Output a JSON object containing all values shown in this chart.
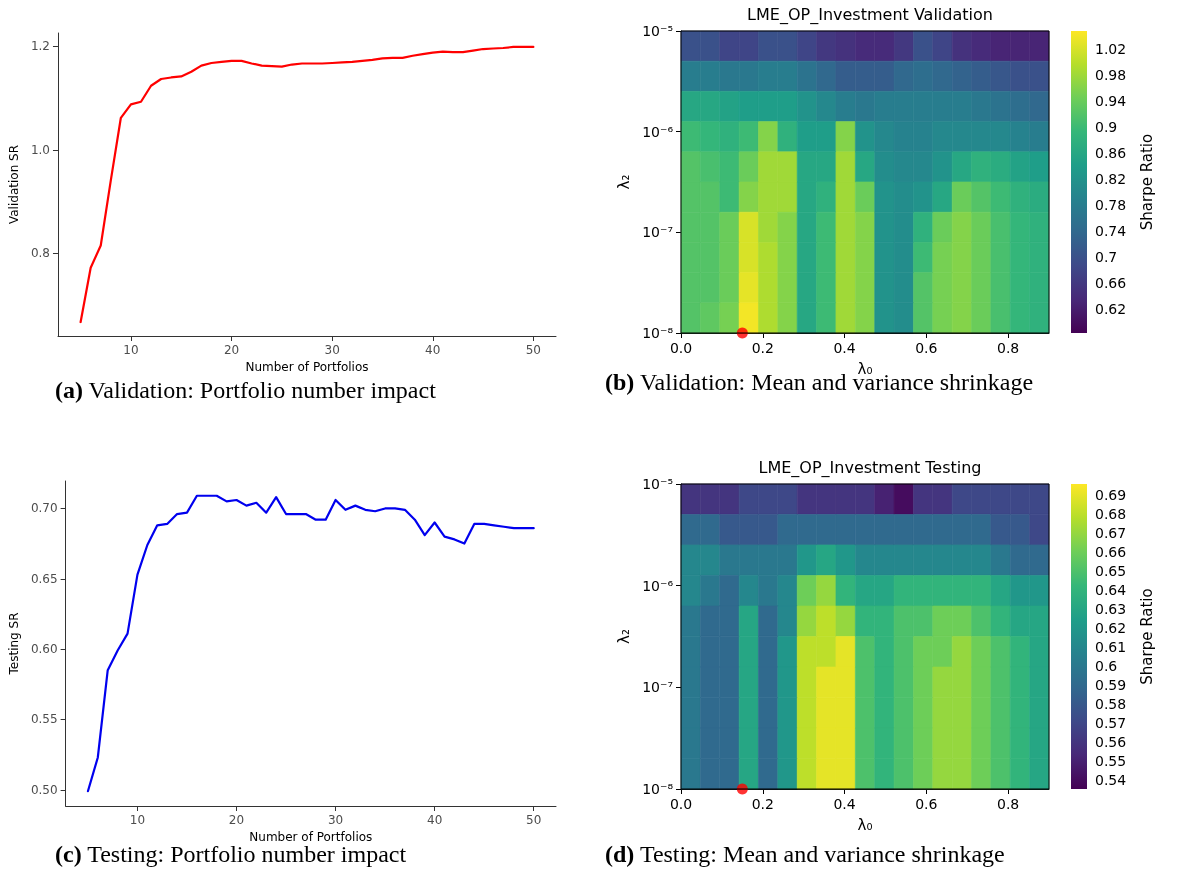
{
  "chart_data": [
    {
      "type": "line",
      "x": [
        5,
        6,
        7,
        8,
        9,
        10,
        11,
        12,
        13,
        14,
        15,
        16,
        17,
        18,
        19,
        20,
        21,
        22,
        23,
        24,
        25,
        26,
        27,
        28,
        29,
        30,
        31,
        32,
        33,
        34,
        35,
        36,
        37,
        38,
        39,
        40,
        41,
        42,
        43,
        44,
        45,
        46,
        47,
        48,
        49,
        50
      ],
      "series": [
        {
          "color": "#ff0000",
          "values": [
            0.667,
            0.772,
            0.815,
            0.941,
            1.062,
            1.088,
            1.093,
            1.124,
            1.137,
            1.14,
            1.142,
            1.151,
            1.163,
            1.168,
            1.17,
            1.172,
            1.172,
            1.167,
            1.163,
            1.162,
            1.161,
            1.165,
            1.167,
            1.167,
            1.167,
            1.168,
            1.169,
            1.17,
            1.172,
            1.174,
            1.177,
            1.178,
            1.178,
            1.182,
            1.185,
            1.188,
            1.19,
            1.189,
            1.189,
            1.192,
            1.195,
            1.196,
            1.197,
            1.199,
            1.199,
            1.199
          ]
        }
      ],
      "xlabel": "Number of Portfolios",
      "ylabel": "Validation SR",
      "xlim": [
        2.75,
        52.25
      ],
      "ylim": [
        0.64,
        1.226
      ],
      "xticks": [
        10,
        20,
        30,
        40,
        50
      ],
      "yticks": [
        0.8,
        {
          "value": 1,
          "label": "1.0"
        },
        1.2
      ],
      "grid": false,
      "marker": "none",
      "line_style": "solid",
      "annotations": [
        "(a) Validation: Portfolio number impact"
      ]
    },
    {
      "type": "heatmap",
      "title": "LME_OP_Investment Validation",
      "xlabel": "λ₀",
      "ylabel": "λ₂",
      "clabel": "Sharpe Ratio",
      "x": [
        0.0237,
        0.0711,
        0.1184,
        0.1658,
        0.2132,
        0.2605,
        0.3079,
        0.3553,
        0.4026,
        0.45,
        0.4974,
        0.5447,
        0.5921,
        0.6395,
        0.6868,
        0.7342,
        0.7816,
        0.8289,
        0.8763
      ],
      "y": [
        7.08e-06,
        3.55e-06,
        1.78e-06,
        8.91e-07,
        4.47e-07,
        2.24e-07,
        1.12e-07,
        5.62e-08,
        2.82e-08,
        1.41e-08
      ],
      "cells": [
        [
          0.7,
          0.7,
          0.68,
          0.68,
          0.7,
          0.7,
          0.68,
          0.66,
          0.65,
          0.64,
          0.64,
          0.66,
          0.7,
          0.68,
          0.65,
          0.64,
          0.63,
          0.63,
          0.63
        ],
        [
          0.78,
          0.78,
          0.77,
          0.77,
          0.78,
          0.78,
          0.76,
          0.74,
          0.72,
          0.72,
          0.72,
          0.74,
          0.75,
          0.74,
          0.73,
          0.72,
          0.71,
          0.7,
          0.7
        ],
        [
          0.86,
          0.86,
          0.85,
          0.84,
          0.84,
          0.84,
          0.82,
          0.8,
          0.78,
          0.77,
          0.78,
          0.78,
          0.78,
          0.78,
          0.78,
          0.77,
          0.76,
          0.75,
          0.74
        ],
        [
          0.9,
          0.89,
          0.88,
          0.9,
          0.96,
          0.88,
          0.84,
          0.84,
          0.96,
          0.82,
          0.8,
          0.79,
          0.79,
          0.8,
          0.8,
          0.8,
          0.8,
          0.79,
          0.78
        ],
        [
          0.92,
          0.91,
          0.9,
          0.94,
          0.98,
          0.98,
          0.86,
          0.86,
          0.98,
          0.86,
          0.81,
          0.8,
          0.8,
          0.82,
          0.86,
          0.88,
          0.87,
          0.85,
          0.84
        ],
        [
          0.92,
          0.92,
          0.9,
          0.96,
          0.98,
          0.98,
          0.86,
          0.88,
          0.98,
          0.94,
          0.82,
          0.81,
          0.82,
          0.86,
          0.94,
          0.92,
          0.9,
          0.88,
          0.87
        ],
        [
          0.92,
          0.92,
          0.94,
          1.02,
          0.98,
          0.96,
          0.86,
          0.9,
          0.98,
          0.96,
          0.82,
          0.81,
          0.88,
          0.94,
          0.96,
          0.94,
          0.91,
          0.89,
          0.88
        ],
        [
          0.92,
          0.92,
          0.94,
          1.02,
          0.99,
          0.96,
          0.86,
          0.9,
          0.98,
          0.96,
          0.82,
          0.81,
          0.9,
          0.95,
          0.96,
          0.94,
          0.91,
          0.89,
          0.88
        ],
        [
          0.92,
          0.92,
          0.94,
          1.03,
          0.99,
          0.96,
          0.86,
          0.9,
          0.98,
          0.96,
          0.82,
          0.81,
          0.92,
          0.95,
          0.96,
          0.94,
          0.91,
          0.89,
          0.88
        ],
        [
          0.92,
          0.93,
          0.95,
          1.04,
          0.99,
          0.96,
          0.86,
          0.9,
          0.98,
          0.96,
          0.82,
          0.81,
          0.92,
          0.95,
          0.96,
          0.94,
          0.91,
          0.89,
          0.88
        ]
      ],
      "series": [
        {
          "type": "scatter",
          "color": "#ff0000",
          "x": [
            0.15
          ],
          "values": [
            1e-08
          ]
        }
      ],
      "xlim": [
        0,
        0.9
      ],
      "ylim": [
        1e-08,
        1e-05
      ],
      "log": "y",
      "xticks": [
        {
          "value": 0,
          "label": "0.0"
        },
        0.2,
        0.4,
        0.6,
        0.8
      ],
      "yticks": [
        {
          "value": 1e-08,
          "label": "10⁻⁸"
        },
        {
          "value": 1e-07,
          "label": "10⁻⁷"
        },
        {
          "value": 1e-06,
          "label": "10⁻⁶"
        },
        {
          "value": 1e-05,
          "label": "10⁻⁵"
        }
      ],
      "clim": [
        0.583,
        1.047
      ],
      "cticks": [
        0.62,
        0.66,
        0.7,
        0.74,
        0.78,
        0.82,
        0.86,
        0.9,
        0.94,
        0.98,
        1.02
      ],
      "annotations": [
        "(b) Validation: Mean and variance shrinkage"
      ]
    },
    {
      "type": "line",
      "x": [
        5,
        6,
        7,
        8,
        9,
        10,
        11,
        12,
        13,
        14,
        15,
        16,
        17,
        18,
        19,
        20,
        21,
        22,
        23,
        24,
        25,
        26,
        27,
        28,
        29,
        30,
        31,
        32,
        33,
        34,
        35,
        36,
        37,
        38,
        39,
        40,
        41,
        42,
        43,
        44,
        45,
        46,
        47,
        48,
        49,
        50
      ],
      "series": [
        {
          "color": "#0000ee",
          "values": [
            0.499,
            0.523,
            0.585,
            0.599,
            0.611,
            0.653,
            0.674,
            0.688,
            0.689,
            0.696,
            0.697,
            0.709,
            0.709,
            0.709,
            0.705,
            0.706,
            0.702,
            0.704,
            0.697,
            0.708,
            0.696,
            0.696,
            0.696,
            0.692,
            0.692,
            0.706,
            0.699,
            0.702,
            0.699,
            0.698,
            0.7,
            0.7,
            0.699,
            0.692,
            0.681,
            0.69,
            0.68,
            0.678,
            0.675,
            0.689,
            0.689,
            0.688,
            0.687,
            0.686,
            0.686,
            0.686
          ]
        }
      ],
      "xlabel": "Number of Portfolios",
      "ylabel": "Testing SR",
      "xlim": [
        2.75,
        52.25
      ],
      "ylim": [
        0.4885,
        0.7195
      ],
      "xticks": [
        10,
        20,
        30,
        40,
        50
      ],
      "yticks": [
        {
          "value": 0.5,
          "label": "0.50"
        },
        0.55,
        {
          "value": 0.6,
          "label": "0.60"
        },
        0.65,
        {
          "value": 0.7,
          "label": "0.70"
        }
      ],
      "grid": false,
      "marker": "none",
      "line_style": "solid",
      "annotations": [
        "(c) Testing: Portfolio number impact"
      ]
    },
    {
      "type": "heatmap",
      "title": "LME_OP_Investment Testing",
      "xlabel": "λ₀",
      "ylabel": "λ₂",
      "clabel": "Sharpe Ratio",
      "x": [
        0.0237,
        0.0711,
        0.1184,
        0.1658,
        0.2132,
        0.2605,
        0.3079,
        0.3553,
        0.4026,
        0.45,
        0.4974,
        0.5447,
        0.5921,
        0.6395,
        0.6868,
        0.7342,
        0.7816,
        0.8289,
        0.8763
      ],
      "y": [
        7.08e-06,
        3.55e-06,
        1.78e-06,
        8.91e-07,
        4.47e-07,
        2.24e-07,
        1.12e-07,
        5.62e-08,
        2.82e-08,
        1.41e-08
      ],
      "cells": [
        [
          0.56,
          0.56,
          0.56,
          0.57,
          0.57,
          0.57,
          0.56,
          0.56,
          0.56,
          0.56,
          0.55,
          0.54,
          0.56,
          0.56,
          0.57,
          0.57,
          0.57,
          0.57,
          0.57
        ],
        [
          0.59,
          0.59,
          0.58,
          0.58,
          0.58,
          0.59,
          0.59,
          0.59,
          0.59,
          0.59,
          0.59,
          0.59,
          0.59,
          0.59,
          0.59,
          0.59,
          0.58,
          0.58,
          0.57
        ],
        [
          0.61,
          0.61,
          0.6,
          0.6,
          0.6,
          0.6,
          0.62,
          0.63,
          0.62,
          0.61,
          0.61,
          0.61,
          0.61,
          0.61,
          0.61,
          0.61,
          0.6,
          0.59,
          0.59
        ],
        [
          0.61,
          0.6,
          0.59,
          0.61,
          0.6,
          0.61,
          0.66,
          0.67,
          0.64,
          0.63,
          0.63,
          0.64,
          0.64,
          0.64,
          0.64,
          0.64,
          0.63,
          0.62,
          0.62
        ],
        [
          0.6,
          0.59,
          0.59,
          0.63,
          0.59,
          0.61,
          0.67,
          0.68,
          0.67,
          0.64,
          0.64,
          0.65,
          0.65,
          0.66,
          0.66,
          0.65,
          0.64,
          0.63,
          0.63
        ],
        [
          0.6,
          0.59,
          0.59,
          0.63,
          0.59,
          0.62,
          0.68,
          0.68,
          0.69,
          0.65,
          0.64,
          0.65,
          0.66,
          0.66,
          0.67,
          0.66,
          0.65,
          0.64,
          0.63
        ],
        [
          0.6,
          0.59,
          0.59,
          0.63,
          0.59,
          0.62,
          0.68,
          0.69,
          0.69,
          0.65,
          0.64,
          0.65,
          0.66,
          0.67,
          0.67,
          0.66,
          0.65,
          0.64,
          0.63
        ],
        [
          0.6,
          0.59,
          0.59,
          0.63,
          0.59,
          0.62,
          0.68,
          0.69,
          0.69,
          0.65,
          0.64,
          0.65,
          0.66,
          0.67,
          0.67,
          0.66,
          0.65,
          0.64,
          0.63
        ],
        [
          0.6,
          0.59,
          0.59,
          0.63,
          0.59,
          0.62,
          0.68,
          0.69,
          0.69,
          0.65,
          0.64,
          0.65,
          0.66,
          0.67,
          0.67,
          0.66,
          0.65,
          0.64,
          0.63
        ],
        [
          0.6,
          0.59,
          0.59,
          0.63,
          0.59,
          0.62,
          0.68,
          0.69,
          0.69,
          0.65,
          0.64,
          0.65,
          0.66,
          0.67,
          0.67,
          0.66,
          0.65,
          0.64,
          0.63
        ]
      ],
      "series": [
        {
          "type": "scatter",
          "color": "#ff0000",
          "x": [
            0.15
          ],
          "values": [
            1e-08
          ]
        }
      ],
      "xlim": [
        0,
        0.9
      ],
      "ylim": [
        1e-08,
        1e-05
      ],
      "log": "y",
      "xticks": [
        {
          "value": 0,
          "label": "0.0"
        },
        0.2,
        0.4,
        0.6,
        0.8
      ],
      "yticks": [
        {
          "value": 1e-08,
          "label": "10⁻⁸"
        },
        {
          "value": 1e-07,
          "label": "10⁻⁷"
        },
        {
          "value": 1e-06,
          "label": "10⁻⁶"
        },
        {
          "value": 1e-05,
          "label": "10⁻⁵"
        }
      ],
      "clim": [
        0.535,
        0.696
      ],
      "cticks": [
        0.54,
        0.55,
        0.56,
        0.57,
        0.58,
        0.59,
        0.6,
        0.61,
        0.62,
        0.63,
        0.64,
        0.65,
        0.66,
        0.67,
        0.68,
        0.69
      ],
      "annotations": [
        "(d) Testing: Mean and variance shrinkage"
      ]
    }
  ]
}
